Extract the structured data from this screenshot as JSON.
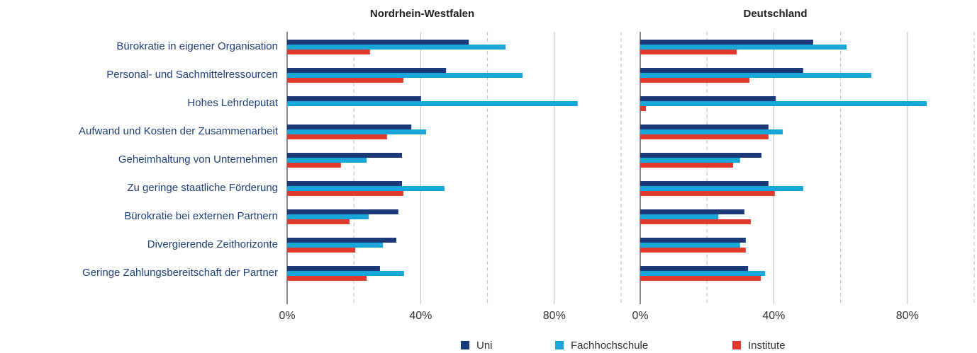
{
  "chart_data": [
    {
      "type": "bar",
      "orientation": "horizontal",
      "title": "Nordrhein-Westfalen",
      "categories": [
        "Bürokratie in eigener Organisation",
        "Personal- und Sachmittelressourcen",
        "Hohes Lehrdeputat",
        "Aufwand und Kosten der Zusammenarbeit",
        "Geheimhaltung von Unternehmen",
        "Zu geringe staatliche Förderung",
        "Bürokratie bei externen Partnern",
        "Divergierende Zeithorizonte",
        "Geringe Zahlungsbereitschaft der Partner"
      ],
      "series": [
        {
          "name": "Uni",
          "color": "#1a3a78",
          "values": [
            54.4,
            47.6,
            40.1,
            37.2,
            34.4,
            34.4,
            33.3,
            32.7,
            27.8
          ]
        },
        {
          "name": "Fachhochschule",
          "color": "#17a6d9",
          "values": [
            65.4,
            70.5,
            87,
            41.6,
            23.8,
            47.1,
            24.4,
            28.7,
            35
          ]
        },
        {
          "name": "Institute",
          "color": "#e03a2e",
          "values": [
            24.8,
            34.8,
            0,
            29.9,
            16.1,
            34.8,
            18.7,
            20.4,
            23.8
          ]
        }
      ],
      "xlim": [
        0,
        100
      ],
      "xticks": [
        {
          "value": 0,
          "label": "0%"
        },
        {
          "value": 40,
          "label": "40%"
        },
        {
          "value": 80,
          "label": "80%"
        }
      ],
      "xminor": [
        20,
        60,
        100
      ],
      "grid": true
    },
    {
      "type": "bar",
      "orientation": "horizontal",
      "title": "Deutschland",
      "series": [
        {
          "color": "#1a3a78",
          "values": [
            51.8,
            48.8,
            40.6,
            38.4,
            36.3,
            38.4,
            31.2,
            31.6,
            32.3
          ]
        },
        {
          "color": "#17a6d9",
          "values": [
            61.8,
            69.2,
            85.8,
            42.7,
            29.9,
            48.8,
            23.4,
            29.9,
            37.4
          ]
        },
        {
          "color": "#e03a2e",
          "values": [
            28.9,
            32.7,
            1.7,
            38.4,
            27.8,
            40.3,
            33.1,
            31.6,
            36.1
          ]
        }
      ],
      "xlim": [
        0,
        100
      ],
      "xticks": [
        {
          "value": 0,
          "label": "0%"
        },
        {
          "value": 40,
          "label": "40%"
        },
        {
          "value": 80,
          "label": "80%"
        }
      ],
      "xminor": [
        20,
        60,
        100
      ],
      "grid": true
    }
  ]
}
